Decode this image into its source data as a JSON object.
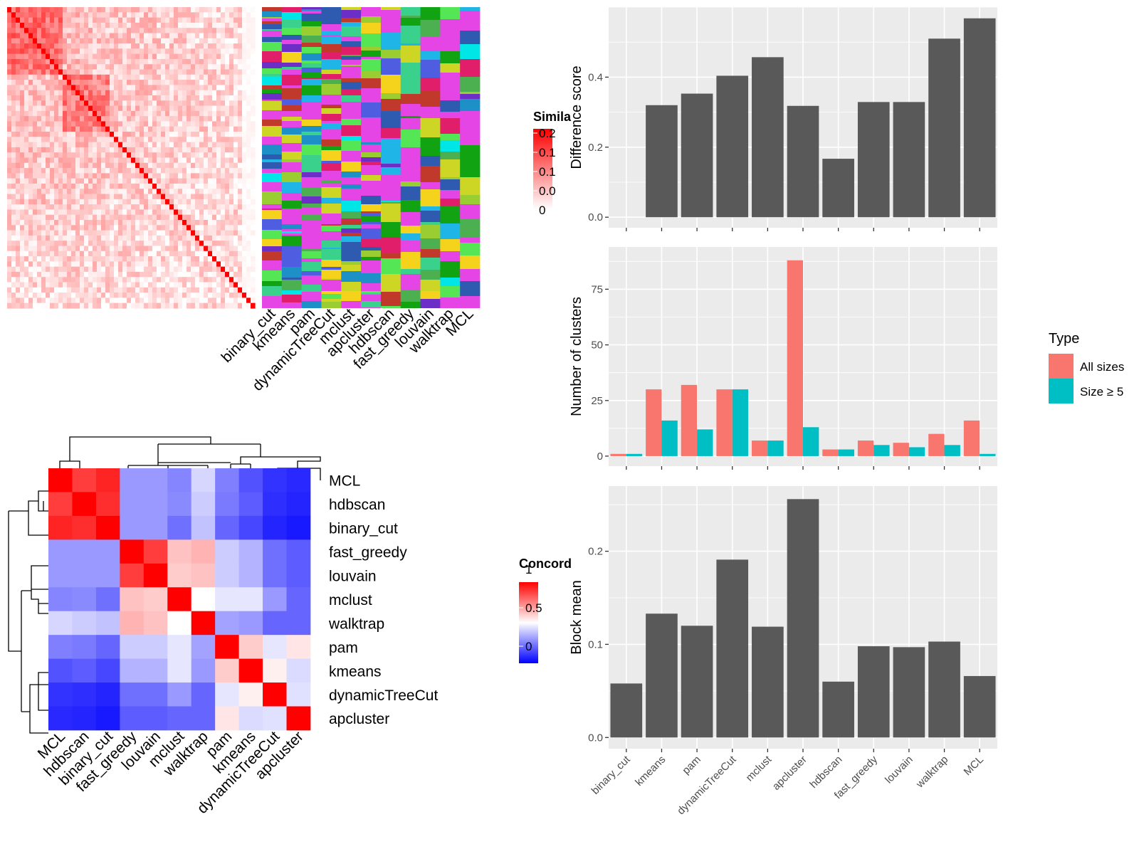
{
  "chart_data": [
    {
      "type": "heatmap",
      "panel": "cell-similarity",
      "legend_title": "Simila",
      "legend_ticks": [
        "0.2",
        "0.1",
        "0.1",
        "0.0",
        "0"
      ],
      "legend_colors": [
        "#ffffff",
        "#ff0000"
      ],
      "annotation_columns": [
        "binary_cut",
        "kmeans",
        "pam",
        "dynamicTreeCut",
        "mclust",
        "apcluster",
        "hdbscan",
        "fast_greedy",
        "louvain",
        "walktrap",
        "MCL"
      ],
      "annotation_palette": [
        "#e645e6",
        "#4caf50",
        "#4f5de0",
        "#1fb5e6",
        "#55e655",
        "#9acd32",
        "#1e90c8",
        "#e01e6a",
        "#3ad18c",
        "#cdd624",
        "#2e5bb0",
        "#c0392b",
        "#00e5e5",
        "#12a312",
        "#6d2ec8",
        "#f5d21b"
      ]
    },
    {
      "type": "heatmap",
      "panel": "method-concordance",
      "legend_title": "Concord",
      "legend_ticks": [
        "1",
        "0.5",
        "0"
      ],
      "legend_colors": [
        "#0000ff",
        "#ffffff",
        "#ff0000"
      ],
      "rows": [
        "MCL",
        "hdbscan",
        "binary_cut",
        "fast_greedy",
        "louvain",
        "mclust",
        "walktrap",
        "pam",
        "kmeans",
        "dynamicTreeCut",
        "apcluster"
      ],
      "cols": [
        "MCL",
        "hdbscan",
        "binary_cut",
        "fast_greedy",
        "louvain",
        "mclust",
        "walktrap",
        "pam",
        "kmeans",
        "dynamicTreeCut",
        "apcluster"
      ],
      "values": [
        [
          1.0,
          0.88,
          0.93,
          0.3,
          0.3,
          0.26,
          0.42,
          0.25,
          0.16,
          0.1,
          0.08
        ],
        [
          0.88,
          1.0,
          0.91,
          0.3,
          0.3,
          0.27,
          0.4,
          0.24,
          0.18,
          0.09,
          0.07
        ],
        [
          0.93,
          0.91,
          1.0,
          0.3,
          0.3,
          0.22,
          0.38,
          0.2,
          0.14,
          0.07,
          0.05
        ],
        [
          0.3,
          0.3,
          0.3,
          1.0,
          0.88,
          0.62,
          0.65,
          0.4,
          0.35,
          0.22,
          0.18
        ],
        [
          0.3,
          0.3,
          0.3,
          0.88,
          1.0,
          0.6,
          0.62,
          0.4,
          0.35,
          0.22,
          0.18
        ],
        [
          0.26,
          0.27,
          0.22,
          0.62,
          0.6,
          1.0,
          0.5,
          0.45,
          0.45,
          0.3,
          0.2
        ],
        [
          0.42,
          0.4,
          0.38,
          0.65,
          0.62,
          0.5,
          1.0,
          0.32,
          0.3,
          0.2,
          0.2
        ],
        [
          0.25,
          0.24,
          0.2,
          0.4,
          0.4,
          0.45,
          0.32,
          1.0,
          0.6,
          0.45,
          0.55
        ],
        [
          0.16,
          0.18,
          0.14,
          0.35,
          0.35,
          0.45,
          0.3,
          0.6,
          1.0,
          0.53,
          0.43
        ],
        [
          0.1,
          0.09,
          0.07,
          0.22,
          0.22,
          0.3,
          0.2,
          0.45,
          0.53,
          1.0,
          0.44
        ],
        [
          0.08,
          0.07,
          0.05,
          0.18,
          0.18,
          0.2,
          0.2,
          0.55,
          0.43,
          0.44,
          1.0
        ]
      ]
    },
    {
      "type": "bar",
      "panel": "difference-score",
      "categories": [
        "binary_cut",
        "kmeans",
        "pam",
        "dynamicTreeCut",
        "mclust",
        "apcluster",
        "hdbscan",
        "fast_greedy",
        "louvain",
        "walktrap",
        "MCL"
      ],
      "values": [
        0.0,
        0.32,
        0.353,
        0.404,
        0.457,
        0.318,
        0.167,
        0.329,
        0.329,
        0.51,
        0.568
      ],
      "ylabel": "Difference score",
      "ylim": [
        -0.03,
        0.6
      ],
      "yticks": [
        "0.0",
        "0.2",
        "0.4"
      ],
      "grid": true
    },
    {
      "type": "bar",
      "panel": "number-of-clusters",
      "categories": [
        "binary_cut",
        "kmeans",
        "pam",
        "dynamicTreeCut",
        "mclust",
        "apcluster",
        "hdbscan",
        "fast_greedy",
        "louvain",
        "walktrap",
        "MCL"
      ],
      "series": [
        {
          "name": "All sizes",
          "color": "#f8766d",
          "values": [
            1,
            30,
            32,
            30,
            7,
            88,
            3,
            7,
            6,
            10,
            16
          ]
        },
        {
          "name": "Size ≥ 5",
          "color": "#00bfc4",
          "values": [
            1,
            16,
            12,
            30,
            7,
            13,
            3,
            5,
            4,
            5,
            1
          ]
        }
      ],
      "ylabel": "Number of clusters",
      "ylim": [
        -4.5,
        94
      ],
      "yticks": [
        "0",
        "25",
        "50",
        "75"
      ],
      "legend_title": "Type",
      "legend_position": "right",
      "grid": true
    },
    {
      "type": "bar",
      "panel": "block-mean",
      "categories": [
        "binary_cut",
        "kmeans",
        "pam",
        "dynamicTreeCut",
        "mclust",
        "apcluster",
        "hdbscan",
        "fast_greedy",
        "louvain",
        "walktrap",
        "MCL"
      ],
      "values": [
        0.058,
        0.133,
        0.12,
        0.191,
        0.119,
        0.256,
        0.06,
        0.098,
        0.097,
        0.103,
        0.066
      ],
      "ylabel": "Block mean",
      "ylim": [
        -0.012,
        0.27
      ],
      "yticks": [
        "0.0",
        "0.1",
        "0.2"
      ],
      "grid": true
    }
  ]
}
